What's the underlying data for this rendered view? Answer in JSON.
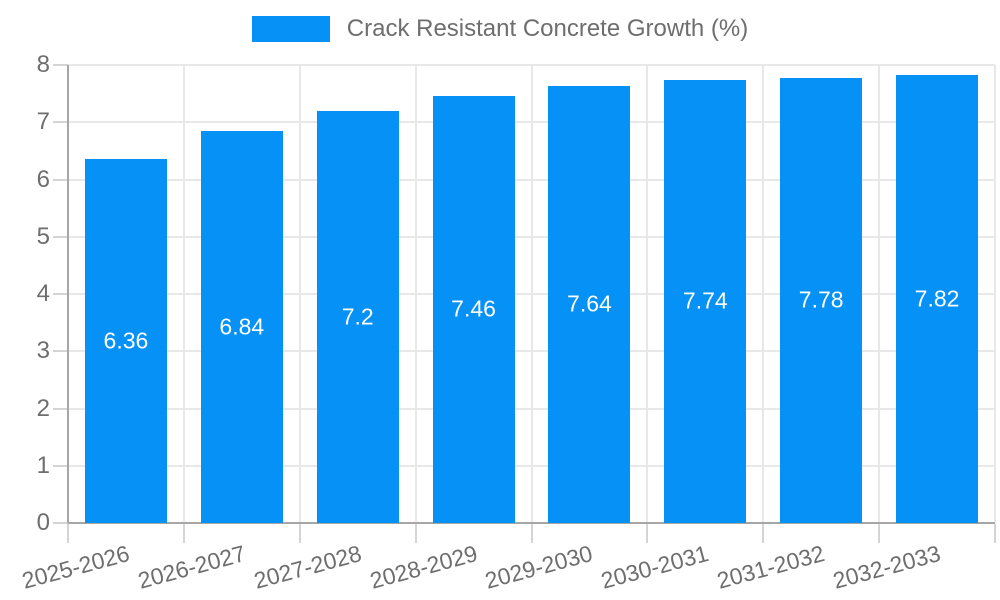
{
  "legend": {
    "label": "Crack Resistant Concrete Growth (%)"
  },
  "chart_data": {
    "type": "bar",
    "title": "Crack Resistant Concrete Growth (%)",
    "series_name": "Crack Resistant Concrete Growth (%)",
    "categories": [
      "2025-2026",
      "2026-2027",
      "2027-2028",
      "2028-2029",
      "2029-2030",
      "2030-2031",
      "2031-2032",
      "2032-2033"
    ],
    "values": [
      6.36,
      6.84,
      7.2,
      7.46,
      7.64,
      7.74,
      7.78,
      7.82
    ],
    "value_labels": [
      "6.36",
      "6.84",
      "7.2",
      "7.46",
      "7.64",
      "7.74",
      "7.78",
      "7.82"
    ],
    "xlabel": "",
    "ylabel": "",
    "ylim": [
      0,
      8
    ],
    "yticks": [
      0,
      1,
      2,
      3,
      4,
      5,
      6,
      7,
      8
    ],
    "grid": true,
    "legend_position": "top-center",
    "value_label_position": "inside-center",
    "bar_color": "#0691f7",
    "value_label_color": "#ffffff",
    "axis_text_color": "#6e6e6e",
    "gridline_color": "#e8e8e8",
    "axis_line_color": "#a6a6a6"
  }
}
